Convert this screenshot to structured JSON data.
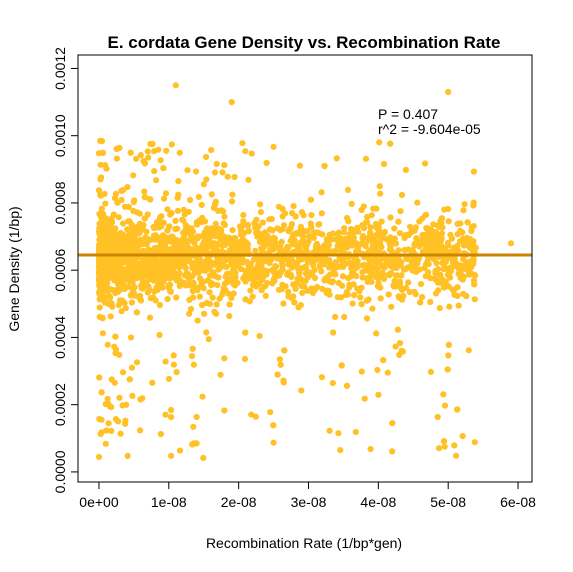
{
  "chart_data": {
    "type": "scatter",
    "title": "E. cordata Gene Density vs. Recombination Rate",
    "xlabel": "Recombination Rate (1/bp*gen)",
    "ylabel": "Gene Density (1/bp)",
    "xlim": [
      -3e-09,
      6.2e-08
    ],
    "ylim": [
      -3e-05,
      0.00124
    ],
    "xticks": [
      0,
      1e-08,
      2e-08,
      3e-08,
      4e-08,
      5e-08,
      6e-08
    ],
    "xtick_labels": [
      "0e+00",
      "1e-08",
      "2e-08",
      "3e-08",
      "4e-08",
      "5e-08",
      "6e-08"
    ],
    "yticks": [
      0,
      0.0002,
      0.0004,
      0.0006,
      0.0008,
      0.001,
      0.0012
    ],
    "ytick_labels": [
      "0.0000",
      "0.0002",
      "0.0004",
      "0.0006",
      "0.0008",
      "0.0010",
      "0.0012"
    ],
    "annotations": [
      "P = 0.407",
      "r^2 = -9.604e-05"
    ],
    "point_color": "#FFC125",
    "line_color": "#CD8500",
    "regression": {
      "intercept": 0.000645,
      "slope": -0.19
    },
    "point_count": 2600,
    "x_range_main": [
      0,
      5.4e-08
    ],
    "y_center": 0.00064,
    "y_spread": 0.00015,
    "outliers": [
      [
        5.9e-08,
        0.00068
      ],
      [
        1.1e-08,
        0.00115
      ],
      [
        5e-08,
        0.00113
      ],
      [
        1.9e-08,
        0.0011
      ]
    ],
    "grid": false,
    "legend": "none"
  }
}
